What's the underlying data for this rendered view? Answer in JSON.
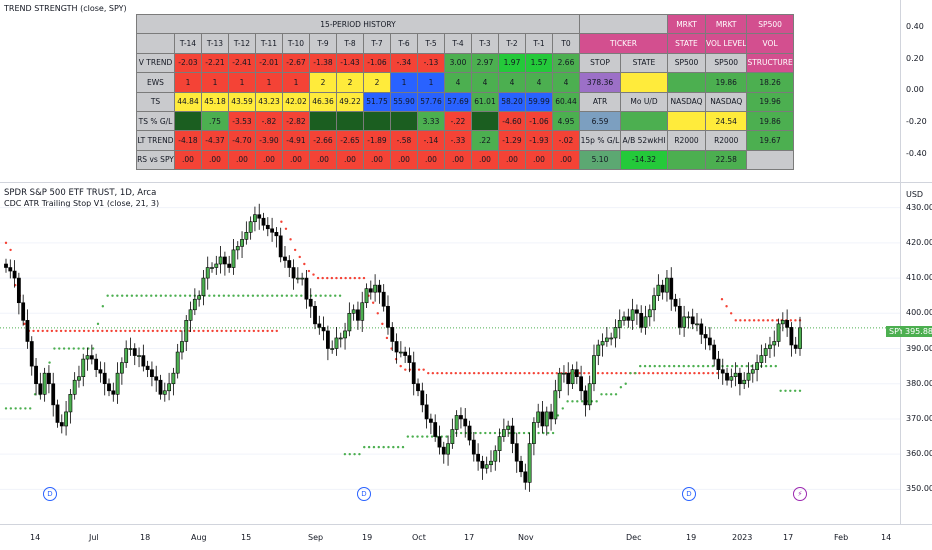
{
  "indicator_title": "TREND STRENGTH (close, SPY)",
  "symbol_title": "SPDR S&P 500 ETF TRUST, 1D, Arca",
  "study_title": "CDC ATR Trailing Stop V1 (close, 21, 3)",
  "currency": "USD",
  "indicator_axis": [
    "0.40",
    "0.20",
    "0.00",
    "-0.20",
    "-0.40"
  ],
  "price_axis": [
    "430.00",
    "420.00",
    "410.00",
    "400.00",
    "390.00",
    "380.00",
    "370.00",
    "360.00",
    "350.00"
  ],
  "last_price": {
    "symbol": "SPY",
    "value": "395.88"
  },
  "time_axis": [
    "14",
    "Jul",
    "18",
    "Aug",
    "15",
    "Sep",
    "19",
    "Oct",
    "17",
    "Nov",
    "Dec",
    "19",
    "2023",
    "17",
    "Feb",
    "14"
  ],
  "event_marks": [
    "D",
    "D",
    "D",
    "⚡"
  ],
  "table": {
    "header_title": "15-PERIOD HISTORY",
    "header_cols": [
      "MRKT",
      "MRKT",
      "SP500"
    ],
    "rows": [
      [
        "",
        "T-14",
        "T-13",
        "T-12",
        "T-11",
        "T-10",
        "T-9",
        "T-8",
        "T-7",
        "T-6",
        "T-5",
        "T-4",
        "T-3",
        "T-2",
        "T-1",
        "T0",
        "TICKER",
        "",
        "STATE",
        "VOL LEVEL",
        "VOL"
      ],
      [
        "V TREND",
        "-2.03",
        "-2.21",
        "-2.41",
        "-2.01",
        "-2.67",
        "-1.38",
        "-1.43",
        "-1.06",
        "-.34",
        "-.13",
        "3.00",
        "2.97",
        "1.97",
        "1.57",
        "2.66",
        "STOP",
        "STATE",
        "SP500",
        "SP500",
        "STRUCTURE"
      ],
      [
        "EWS",
        "1",
        "1",
        "1",
        "1",
        "1",
        "2",
        "2",
        "2",
        "1",
        "1",
        "4",
        "4",
        "4",
        "4",
        "4",
        "378.36",
        "",
        "",
        "19.86",
        "18.26"
      ],
      [
        "TS",
        "44.84",
        "45.18",
        "43.59",
        "43.23",
        "42.02",
        "46.36",
        "49.22",
        "51.75",
        "55.90",
        "57.76",
        "57.69",
        "61.01",
        "58.20",
        "59.99",
        "60.44",
        "ATR",
        "Mo U/D",
        "NASDAQ",
        "NASDAQ",
        "19.96"
      ],
      [
        "TS % G/L",
        "",
        ".75",
        "-3.53",
        "-.82",
        "-2.82",
        "",
        "",
        "",
        "",
        "3.33",
        "-.22",
        "",
        "-4.60",
        "-1.06",
        "4.95",
        "6.59",
        "",
        "",
        "24.54",
        "19.86"
      ],
      [
        "LT TREND",
        "-4.18",
        "-4.37",
        "-4.70",
        "-3.90",
        "-4.91",
        "-2.66",
        "-2.65",
        "-1.89",
        "-.58",
        "-.14",
        "-.33",
        ".22",
        "-1.29",
        "-1.93",
        "-.02",
        "15p % G/L",
        "A/B 52wkHI",
        "R2000",
        "R2000",
        "19.67"
      ],
      [
        "RS vs SPY",
        ".00",
        ".00",
        ".00",
        ".00",
        ".00",
        ".00",
        ".00",
        ".00",
        ".00",
        ".00",
        ".00",
        ".00",
        ".00",
        ".00",
        ".00",
        "5.10",
        "-14.32",
        "",
        "22.58",
        ""
      ]
    ]
  },
  "chart_data": {
    "type": "candlestick",
    "title": "SPDR S&P 500 ETF TRUST, 1D, Arca",
    "series_name": "CDC ATR Trailing Stop V1 (close, 21, 3)",
    "ylim": [
      345,
      437
    ],
    "last_value": 395.88,
    "closes": [
      413,
      412,
      410,
      403,
      398,
      392,
      385,
      380,
      377,
      383,
      380,
      374,
      369,
      368,
      372,
      377,
      381,
      382,
      387,
      388,
      387,
      384,
      383,
      380,
      378,
      377,
      383,
      386,
      390,
      390,
      388,
      388,
      385,
      384,
      382,
      381,
      377,
      378,
      380,
      383,
      389,
      392,
      398,
      401,
      404,
      405,
      410,
      413,
      413,
      414,
      416,
      414,
      413,
      418,
      419,
      421,
      423,
      426,
      428,
      427,
      425,
      424,
      423,
      422,
      416,
      415,
      413,
      410,
      410,
      410,
      404,
      402,
      397,
      396,
      395,
      390,
      390,
      393,
      393,
      395,
      400,
      401,
      398,
      403,
      407,
      406,
      408,
      406,
      402,
      396,
      392,
      389,
      389,
      388,
      386,
      380,
      378,
      374,
      370,
      369,
      365,
      362,
      360,
      363,
      367,
      371,
      370,
      368,
      364,
      360,
      358,
      356,
      357,
      358,
      361,
      365,
      367,
      368,
      363,
      358,
      355,
      352,
      363,
      369,
      372,
      368,
      372,
      370,
      378,
      383,
      383,
      380,
      384,
      382,
      378,
      374,
      380,
      388,
      391,
      392,
      393,
      393,
      396,
      398,
      399,
      398,
      401,
      400,
      396,
      399,
      401,
      405,
      408,
      406,
      410,
      404,
      402,
      396,
      399,
      399,
      397,
      397,
      394,
      393,
      391,
      387,
      384,
      383,
      381,
      382,
      383,
      380,
      381,
      383,
      384,
      386,
      388,
      390,
      391,
      392,
      397,
      398,
      396,
      391,
      390,
      395.88
    ],
    "trailing_stop_red": [
      420,
      418,
      408,
      405,
      397,
      395,
      395,
      395,
      395,
      395,
      395,
      395,
      395,
      395,
      395,
      395,
      395,
      395,
      395,
      395,
      395,
      395,
      395,
      395,
      395,
      395,
      395,
      395,
      395,
      395,
      395,
      395,
      395,
      395,
      395,
      395,
      395,
      395,
      395,
      395,
      395,
      395,
      395,
      395,
      395,
      395,
      395,
      395,
      395,
      395,
      395,
      395,
      395,
      395,
      395,
      395,
      395,
      395,
      395,
      395,
      426,
      424,
      421,
      418,
      416,
      414,
      412,
      411,
      410,
      410,
      410,
      410,
      410,
      410,
      410,
      410,
      410,
      410,
      410,
      405,
      403,
      400,
      397,
      393,
      390,
      387,
      385,
      384,
      384,
      384,
      384,
      384,
      383,
      383,
      383,
      383,
      383,
      383,
      383,
      383,
      383,
      383,
      383,
      383,
      383,
      383,
      383,
      383,
      383,
      383,
      383,
      383,
      383,
      383,
      383,
      383,
      383,
      383,
      383,
      383,
      383,
      383,
      383,
      383,
      383,
      383,
      383,
      383,
      383,
      383,
      383,
      383,
      383,
      383,
      383,
      383,
      383,
      383,
      383,
      383,
      383,
      383,
      383,
      383,
      383,
      383,
      383,
      383,
      383,
      383,
      383,
      383,
      383,
      383,
      383,
      383,
      404,
      402,
      400,
      398,
      398,
      398,
      398,
      398,
      398,
      398,
      398,
      398,
      398,
      398,
      398,
      398,
      398,
      398
    ],
    "trailing_stop_green": [
      373,
      373,
      373,
      373,
      373,
      373,
      377,
      377,
      381,
      386,
      390,
      390,
      390,
      390,
      390,
      390,
      390,
      390,
      390,
      397,
      402,
      405,
      405,
      405,
      405,
      405,
      405,
      405,
      405,
      405,
      405,
      405,
      405,
      405,
      405,
      405,
      405,
      405,
      405,
      405,
      405,
      405,
      405,
      405,
      405,
      405,
      405,
      405,
      405,
      405,
      405,
      405,
      405,
      405,
      405,
      405,
      405,
      405,
      405,
      405,
      405,
      405,
      405,
      405,
      405,
      405,
      405,
      405,
      405,
      405,
      360,
      360,
      360,
      360,
      362,
      362,
      362,
      362,
      362,
      362,
      362,
      362,
      362,
      365,
      365,
      365,
      365,
      365,
      365,
      365,
      365,
      365,
      365,
      366,
      366,
      366,
      366,
      366,
      366,
      366,
      366,
      366,
      366,
      366,
      366,
      366,
      366,
      366,
      366,
      366,
      366,
      366,
      366,
      366,
      371,
      373,
      375,
      375,
      375,
      375,
      375,
      375,
      375,
      377,
      377,
      377,
      377,
      379,
      380,
      383,
      383,
      385,
      385,
      385,
      385,
      385,
      385,
      385,
      385,
      385,
      385,
      385,
      385,
      385,
      385,
      385,
      385,
      385,
      385,
      385,
      385,
      385,
      385,
      385,
      385,
      385,
      385,
      385,
      385,
      385,
      378,
      378,
      378,
      378,
      378
    ]
  }
}
